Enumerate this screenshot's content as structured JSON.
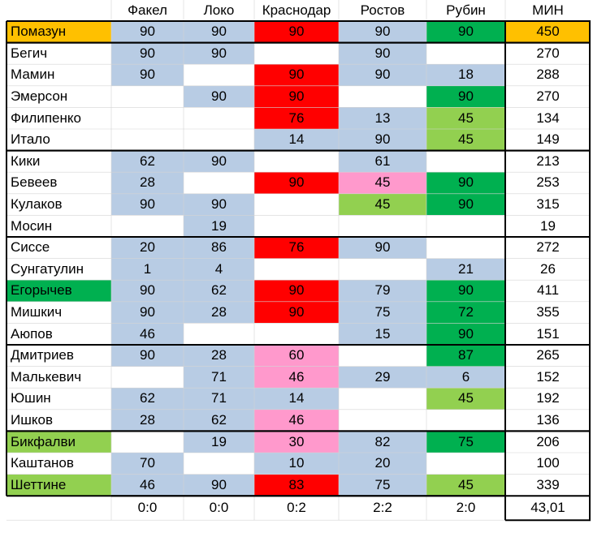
{
  "colors": {
    "blue": "#b8cce4",
    "red": "#ff0000",
    "pink": "#ff99cc",
    "green_dark": "#00b050",
    "green_light": "#92d050",
    "orange": "#ffc000",
    "white": "#ffffff"
  },
  "columns": [
    "Факел",
    "Локо",
    "Краснодар",
    "Ростов",
    "Рубин"
  ],
  "total_header": "МИН",
  "groups": [
    {
      "rows": [
        {
          "name": "Помазун",
          "name_color": "orange",
          "cells": [
            {
              "v": "90",
              "c": "blue"
            },
            {
              "v": "90",
              "c": "blue"
            },
            {
              "v": "90",
              "c": "red"
            },
            {
              "v": "90",
              "c": "blue"
            },
            {
              "v": "90",
              "c": "green_dark"
            }
          ],
          "total": "450",
          "total_color": "orange"
        }
      ]
    },
    {
      "rows": [
        {
          "name": "Бегич",
          "name_color": "white",
          "cells": [
            {
              "v": "90",
              "c": "blue"
            },
            {
              "v": "90",
              "c": "blue"
            },
            {
              "v": "",
              "c": "white"
            },
            {
              "v": "90",
              "c": "blue"
            },
            {
              "v": "",
              "c": "white"
            }
          ],
          "total": "270",
          "total_color": "white"
        },
        {
          "name": "Мамин",
          "name_color": "white",
          "cells": [
            {
              "v": "90",
              "c": "blue"
            },
            {
              "v": "",
              "c": "white"
            },
            {
              "v": "90",
              "c": "red"
            },
            {
              "v": "90",
              "c": "blue"
            },
            {
              "v": "18",
              "c": "blue"
            }
          ],
          "total": "288",
          "total_color": "white"
        },
        {
          "name": "Эмерсон",
          "name_color": "white",
          "cells": [
            {
              "v": "",
              "c": "white"
            },
            {
              "v": "90",
              "c": "blue"
            },
            {
              "v": "90",
              "c": "red"
            },
            {
              "v": "",
              "c": "white"
            },
            {
              "v": "90",
              "c": "green_dark"
            }
          ],
          "total": "270",
          "total_color": "white"
        },
        {
          "name": "Филипенко",
          "name_color": "white",
          "cells": [
            {
              "v": "",
              "c": "white"
            },
            {
              "v": "",
              "c": "white"
            },
            {
              "v": "76",
              "c": "red"
            },
            {
              "v": "13",
              "c": "blue"
            },
            {
              "v": "45",
              "c": "green_light"
            }
          ],
          "total": "134",
          "total_color": "white"
        },
        {
          "name": "Итало",
          "name_color": "white",
          "cells": [
            {
              "v": "",
              "c": "white"
            },
            {
              "v": "",
              "c": "white"
            },
            {
              "v": "14",
              "c": "blue"
            },
            {
              "v": "90",
              "c": "blue"
            },
            {
              "v": "45",
              "c": "green_light"
            }
          ],
          "total": "149",
          "total_color": "white"
        }
      ]
    },
    {
      "rows": [
        {
          "name": "Кики",
          "name_color": "white",
          "cells": [
            {
              "v": "62",
              "c": "blue"
            },
            {
              "v": "90",
              "c": "blue"
            },
            {
              "v": "",
              "c": "white"
            },
            {
              "v": "61",
              "c": "blue"
            },
            {
              "v": "",
              "c": "white"
            }
          ],
          "total": "213",
          "total_color": "white"
        },
        {
          "name": "Бевеев",
          "name_color": "white",
          "cells": [
            {
              "v": "28",
              "c": "blue"
            },
            {
              "v": "",
              "c": "white"
            },
            {
              "v": "90",
              "c": "red"
            },
            {
              "v": "45",
              "c": "pink"
            },
            {
              "v": "90",
              "c": "green_dark"
            }
          ],
          "total": "253",
          "total_color": "white"
        },
        {
          "name": "Кулаков",
          "name_color": "white",
          "cells": [
            {
              "v": "90",
              "c": "blue"
            },
            {
              "v": "90",
              "c": "blue"
            },
            {
              "v": "",
              "c": "white"
            },
            {
              "v": "45",
              "c": "green_light"
            },
            {
              "v": "90",
              "c": "green_dark"
            }
          ],
          "total": "315",
          "total_color": "white"
        },
        {
          "name": "Мосин",
          "name_color": "white",
          "cells": [
            {
              "v": "",
              "c": "white"
            },
            {
              "v": "19",
              "c": "blue"
            },
            {
              "v": "",
              "c": "white"
            },
            {
              "v": "",
              "c": "white"
            },
            {
              "v": "",
              "c": "white"
            }
          ],
          "total": "19",
          "total_color": "white"
        }
      ]
    },
    {
      "rows": [
        {
          "name": "Сиссе",
          "name_color": "white",
          "cells": [
            {
              "v": "20",
              "c": "blue"
            },
            {
              "v": "86",
              "c": "blue"
            },
            {
              "v": "76",
              "c": "red"
            },
            {
              "v": "90",
              "c": "blue"
            },
            {
              "v": "",
              "c": "white"
            }
          ],
          "total": "272",
          "total_color": "white"
        },
        {
          "name": "Сунгатулин",
          "name_color": "white",
          "cells": [
            {
              "v": "1",
              "c": "blue"
            },
            {
              "v": "4",
              "c": "blue"
            },
            {
              "v": "",
              "c": "white"
            },
            {
              "v": "",
              "c": "white"
            },
            {
              "v": "21",
              "c": "blue"
            }
          ],
          "total": "26",
          "total_color": "white"
        },
        {
          "name": "Егорычев",
          "name_color": "green_dark",
          "cells": [
            {
              "v": "90",
              "c": "blue"
            },
            {
              "v": "62",
              "c": "blue"
            },
            {
              "v": "90",
              "c": "red"
            },
            {
              "v": "79",
              "c": "blue"
            },
            {
              "v": "90",
              "c": "green_dark"
            }
          ],
          "total": "411",
          "total_color": "white"
        },
        {
          "name": "Мишкич",
          "name_color": "white",
          "cells": [
            {
              "v": "90",
              "c": "blue"
            },
            {
              "v": "28",
              "c": "blue"
            },
            {
              "v": "90",
              "c": "red"
            },
            {
              "v": "75",
              "c": "blue"
            },
            {
              "v": "72",
              "c": "green_dark"
            }
          ],
          "total": "355",
          "total_color": "white"
        },
        {
          "name": "Аюпов",
          "name_color": "white",
          "cells": [
            {
              "v": "46",
              "c": "blue"
            },
            {
              "v": "",
              "c": "white"
            },
            {
              "v": "",
              "c": "white"
            },
            {
              "v": "15",
              "c": "blue"
            },
            {
              "v": "90",
              "c": "green_dark"
            }
          ],
          "total": "151",
          "total_color": "white"
        }
      ]
    },
    {
      "rows": [
        {
          "name": "Дмитриев",
          "name_color": "white",
          "cells": [
            {
              "v": "90",
              "c": "blue"
            },
            {
              "v": "28",
              "c": "blue"
            },
            {
              "v": "60",
              "c": "pink"
            },
            {
              "v": "",
              "c": "white"
            },
            {
              "v": "87",
              "c": "green_dark"
            }
          ],
          "total": "265",
          "total_color": "white"
        },
        {
          "name": "Малькевич",
          "name_color": "white",
          "cells": [
            {
              "v": "",
              "c": "white"
            },
            {
              "v": "71",
              "c": "blue"
            },
            {
              "v": "46",
              "c": "pink"
            },
            {
              "v": "29",
              "c": "blue"
            },
            {
              "v": "6",
              "c": "blue"
            }
          ],
          "total": "152",
          "total_color": "white"
        },
        {
          "name": "Юшин",
          "name_color": "white",
          "cells": [
            {
              "v": "62",
              "c": "blue"
            },
            {
              "v": "71",
              "c": "blue"
            },
            {
              "v": "14",
              "c": "blue"
            },
            {
              "v": "",
              "c": "white"
            },
            {
              "v": "45",
              "c": "green_light"
            }
          ],
          "total": "192",
          "total_color": "white"
        },
        {
          "name": "Ишков",
          "name_color": "white",
          "cells": [
            {
              "v": "28",
              "c": "blue"
            },
            {
              "v": "62",
              "c": "blue"
            },
            {
              "v": "46",
              "c": "pink"
            },
            {
              "v": "",
              "c": "white"
            },
            {
              "v": "",
              "c": "white"
            }
          ],
          "total": "136",
          "total_color": "white"
        }
      ]
    },
    {
      "rows": [
        {
          "name": "Бикфалви",
          "name_color": "green_light",
          "cells": [
            {
              "v": "",
              "c": "white"
            },
            {
              "v": "19",
              "c": "blue"
            },
            {
              "v": "30",
              "c": "pink"
            },
            {
              "v": "82",
              "c": "blue"
            },
            {
              "v": "75",
              "c": "green_dark"
            }
          ],
          "total": "206",
          "total_color": "white"
        },
        {
          "name": "Каштанов",
          "name_color": "white",
          "cells": [
            {
              "v": "70",
              "c": "blue"
            },
            {
              "v": "",
              "c": "white"
            },
            {
              "v": "10",
              "c": "blue"
            },
            {
              "v": "20",
              "c": "blue"
            },
            {
              "v": "",
              "c": "white"
            }
          ],
          "total": "100",
          "total_color": "white"
        },
        {
          "name": "Шеттине",
          "name_color": "green_light",
          "cells": [
            {
              "v": "46",
              "c": "blue"
            },
            {
              "v": "90",
              "c": "blue"
            },
            {
              "v": "83",
              "c": "red"
            },
            {
              "v": "75",
              "c": "blue"
            },
            {
              "v": "45",
              "c": "green_light"
            }
          ],
          "total": "339",
          "total_color": "white"
        }
      ]
    }
  ],
  "footer": {
    "scores": [
      "0:0",
      "0:0",
      "0:2",
      "2:2",
      "2:0"
    ],
    "total": "43,01"
  }
}
